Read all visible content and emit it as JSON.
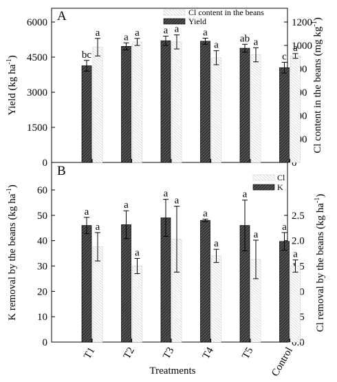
{
  "chart_data": [
    {
      "panel": "A",
      "type": "bar",
      "categories": [
        "T1",
        "T2",
        "T3",
        "T4",
        "T5",
        "Control"
      ],
      "xlabel": "Treatments",
      "series": [
        {
          "name": "Yield",
          "axis": "left",
          "values": [
            4130,
            4960,
            5200,
            5180,
            4880,
            4050
          ],
          "errors": [
            230,
            150,
            200,
            130,
            170,
            230
          ],
          "letters": [
            "bc",
            "a",
            "a",
            "a",
            "ab",
            "c"
          ]
        },
        {
          "name": "Cl content in the beans",
          "axis": "right",
          "values": [
            985,
            1030,
            1030,
            895,
            920,
            910
          ],
          "errors": [
            75,
            30,
            60,
            60,
            60,
            20
          ],
          "letters": [
            "a",
            "a",
            "a",
            "a",
            "a",
            "a"
          ]
        }
      ],
      "ylabel": "Yield (kg ha",
      "ylabel_sup": "-1",
      "ylabel_tail": ")",
      "ylim": [
        0,
        6000
      ],
      "yticks": [
        "0",
        "1500",
        "3000",
        "4500",
        "6000"
      ],
      "y2label": "Cl content in the beans (mg kg",
      "y2label_sup": "-1",
      "y2label_tail": ")",
      "y2lim": [
        0,
        1200
      ],
      "y2ticks": [
        "0",
        "200",
        "400",
        "600",
        "800",
        "1000",
        "1200"
      ],
      "legend_position": "top-right"
    },
    {
      "panel": "B",
      "type": "bar",
      "categories": [
        "T1",
        "T2",
        "T3",
        "T4",
        "T5",
        "Control"
      ],
      "xlabel": "Treatments",
      "series": [
        {
          "name": "K",
          "axis": "left",
          "values": [
            46,
            46.3,
            49,
            48,
            46,
            39.7
          ],
          "errors": [
            3.2,
            5.5,
            7.3,
            0.5,
            10,
            3.5
          ],
          "letters": [
            "a",
            "a",
            "a",
            "a",
            "a",
            "a"
          ]
        },
        {
          "name": "Cl",
          "axis": "right",
          "values": [
            1.88,
            1.5,
            2.03,
            1.7,
            1.63,
            1.5
          ],
          "errors": [
            0.28,
            0.15,
            0.65,
            0.13,
            0.38,
            0.12
          ],
          "letters": [
            "a",
            "a",
            "a",
            "a",
            "a",
            "a"
          ]
        }
      ],
      "ylabel": "K removal by the beans (kg ha",
      "ylabel_sup": "-1",
      "ylabel_tail": ")",
      "ylim": [
        0,
        60
      ],
      "yticks": [
        "0",
        "10",
        "20",
        "30",
        "40",
        "50",
        "60"
      ],
      "y2label": "Cl removal by the beans (kg ha",
      "y2label_sup": "-1",
      "y2label_tail": ")",
      "y2lim": [
        0,
        3
      ],
      "y2ticks": [
        "0.0",
        "0.5",
        "1.0",
        "1.5",
        "2.0",
        "2.5"
      ],
      "legend_position": "top-right"
    }
  ]
}
